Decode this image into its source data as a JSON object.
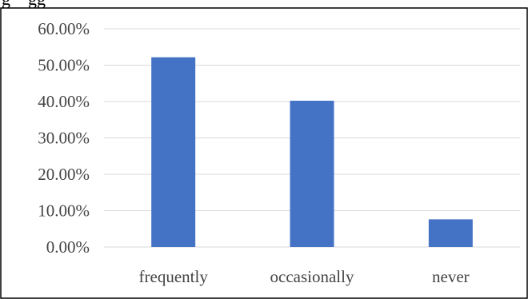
{
  "header": {
    "cropped_text": "g    gg"
  },
  "chart_data": {
    "type": "bar",
    "title": "",
    "xlabel": "",
    "ylabel": "",
    "categories": [
      "frequently",
      "occasionally",
      "never"
    ],
    "values": [
      0.5217,
      0.4022,
      0.0761
    ],
    "ylim": [
      0,
      0.6
    ],
    "yticks": [
      0,
      0.1,
      0.2,
      0.3,
      0.4,
      0.5,
      0.6
    ],
    "ytick_labels": [
      "0.00%",
      "10.00%",
      "20.00%",
      "30.00%",
      "40.00%",
      "50.00%",
      "60.00%"
    ],
    "grid": true,
    "legend": "none",
    "bar_color": "#4472C4",
    "grid_color": "#D9D9D9",
    "frame_color": "#000000"
  }
}
